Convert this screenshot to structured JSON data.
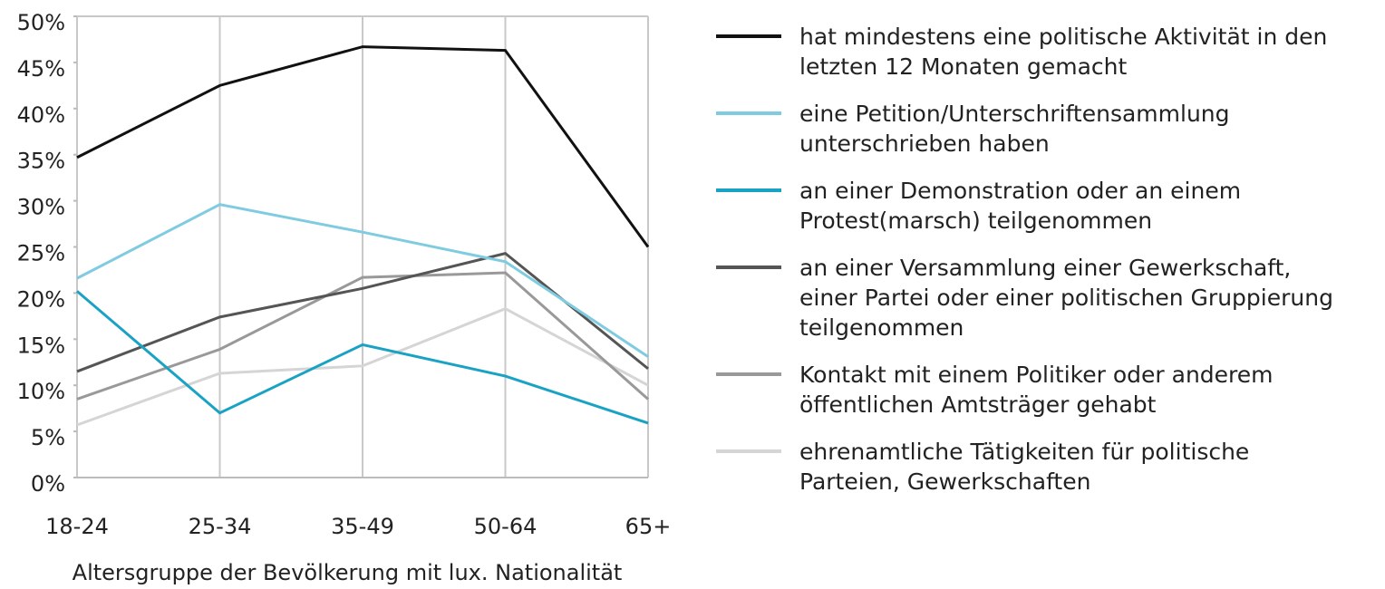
{
  "chart_data": {
    "type": "line",
    "x_label": "Altersgruppe der Bevölkerung mit lux. Nationalität",
    "categories": [
      "18-24",
      "25-34",
      "35-49",
      "50-64",
      "65+"
    ],
    "series": [
      {
        "name": "hat mindestens eine politische Aktivität in den\nletzten 12 Monaten gemacht",
        "color": "#111111",
        "values": [
          34.7,
          42.5,
          46.7,
          46.3,
          25.0
        ]
      },
      {
        "name": "eine Petition/Unterschriftensammlung\nunterschrieben haben",
        "color": "#7fcbe0",
        "values": [
          21.6,
          29.6,
          26.6,
          23.4,
          13.1
        ]
      },
      {
        "name": "an einer Demonstration oder an einem\nProtest(marsch) teilgenommen",
        "color": "#1aa2c4",
        "values": [
          20.2,
          7.0,
          14.4,
          11.0,
          5.9
        ]
      },
      {
        "name": "an einer Versammlung einer Gewerkschaft,\neiner Partei oder einer politischen Gruppierung\nteilgenommen",
        "color": "#555555",
        "values": [
          11.5,
          17.4,
          20.5,
          24.3,
          11.8
        ]
      },
      {
        "name": "Kontakt mit einem Politiker oder anderem\nöffentlichen Amtsträger gehabt",
        "color": "#999999",
        "values": [
          8.5,
          13.9,
          21.7,
          22.2,
          8.5
        ]
      },
      {
        "name": "ehrenamtliche Tätigkeiten für politische\nParteien, Gewerkschaften",
        "color": "#d5d5d5",
        "values": [
          5.7,
          11.3,
          12.1,
          18.3,
          10.0
        ]
      }
    ],
    "ylim": [
      0,
      50
    ],
    "yticks": [
      {
        "value": 0,
        "label": "0%"
      },
      {
        "value": 5,
        "label": "5%"
      },
      {
        "value": 10,
        "label": "10%"
      },
      {
        "value": 15,
        "label": "15%"
      },
      {
        "value": 20,
        "label": "20%"
      },
      {
        "value": 25,
        "label": "25%"
      },
      {
        "value": 30,
        "label": "30%"
      },
      {
        "value": 35,
        "label": "35%"
      },
      {
        "value": 40,
        "label": "40%"
      },
      {
        "value": 45,
        "label": "45%"
      },
      {
        "value": 50,
        "label": "50%"
      }
    ],
    "grid": true
  }
}
